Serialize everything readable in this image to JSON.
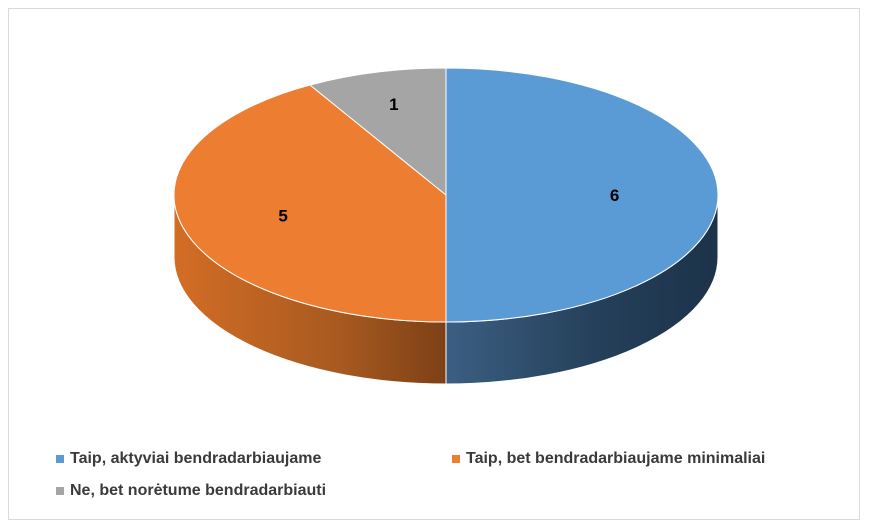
{
  "chart_data": {
    "type": "pie",
    "style": "3d",
    "categories": [
      "Taip, aktyviai bendradarbiaujame",
      "Taip, bet bendradarbiaujame minimaliai",
      "Ne, bet norėtume bendradarbiauti"
    ],
    "values": [
      6,
      5,
      1
    ],
    "colors": [
      "#5b9bd5",
      "#ed7d31",
      "#a5a5a5"
    ],
    "side_colors": [
      "#2e4a66",
      "#9a4f18",
      "#6b6b6b"
    ],
    "title": "",
    "legend_position": "bottom"
  }
}
